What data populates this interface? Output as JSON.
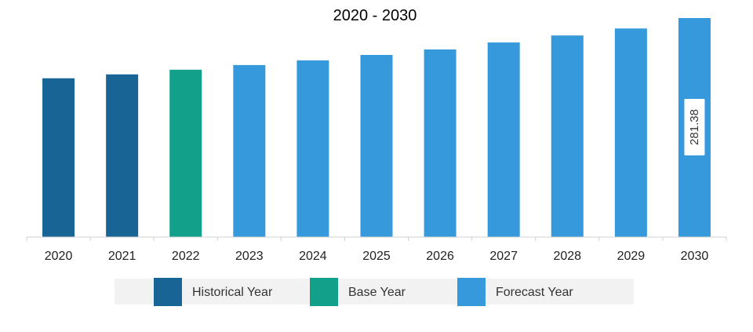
{
  "chart_data": {
    "type": "bar",
    "title": "2020 - 2030",
    "xlabel": "",
    "ylabel": "",
    "categories": [
      "2020",
      "2021",
      "2022",
      "2023",
      "2024",
      "2025",
      "2026",
      "2027",
      "2028",
      "2029",
      "2030"
    ],
    "values": [
      204,
      209,
      215,
      221,
      227,
      234,
      241,
      250,
      259,
      268,
      281.38
    ],
    "ylim": [
      0,
      281.38
    ],
    "bar_kinds": [
      "historical",
      "historical",
      "base",
      "forecast",
      "forecast",
      "forecast",
      "forecast",
      "forecast",
      "forecast",
      "forecast",
      "forecast"
    ],
    "data_labels": [
      {
        "index": 10,
        "text": "281.38"
      }
    ],
    "grid": false,
    "legend": {
      "placement": "bottom",
      "items": [
        {
          "key": "historical",
          "label": "Historical Year"
        },
        {
          "key": "base",
          "label": "Base Year"
        },
        {
          "key": "forecast",
          "label": "Forecast Year"
        }
      ]
    },
    "colors": {
      "historical": "#186494",
      "base": "#12a08a",
      "forecast": "#3599db",
      "axis": "#d0d0d0",
      "legend_background": "#f2f2f2"
    }
  }
}
